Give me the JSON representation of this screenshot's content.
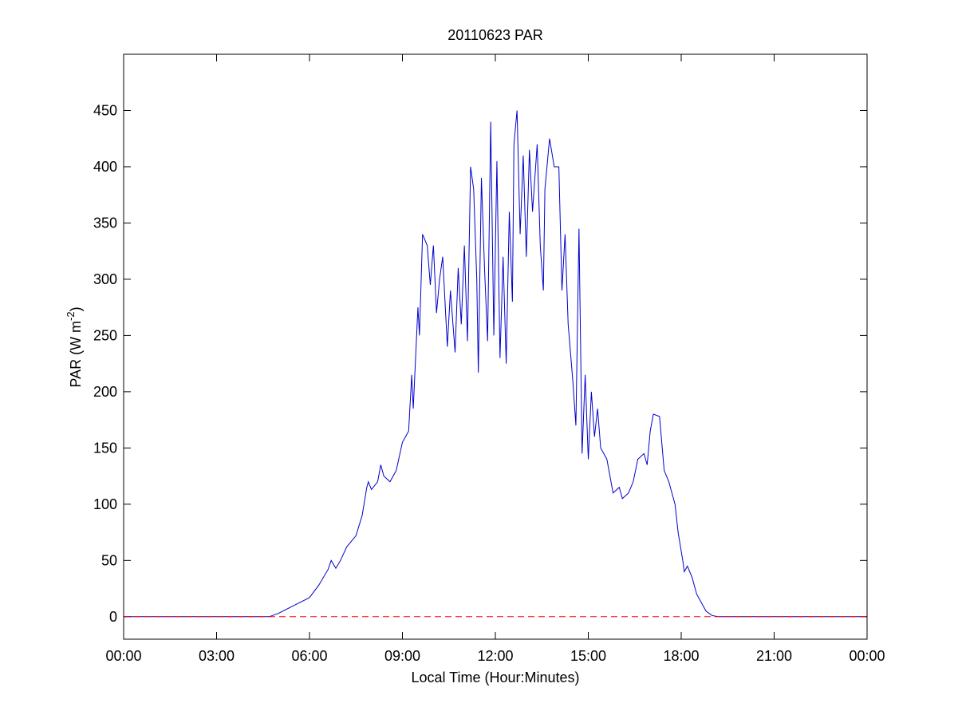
{
  "chart_data": {
    "type": "line",
    "title": "20110623 PAR",
    "x_label": "Local Time (Hour:Minutes)",
    "y_label": {
      "text": "PAR (W m",
      "superscript": "-2",
      "suffix": ")"
    },
    "xlim": [
      0,
      24
    ],
    "xticks": [
      {
        "value": 0,
        "label": "00:00"
      },
      {
        "value": 3,
        "label": "03:00"
      },
      {
        "value": 6,
        "label": "06:00"
      },
      {
        "value": 9,
        "label": "09:00"
      },
      {
        "value": 12,
        "label": "12:00"
      },
      {
        "value": 15,
        "label": "15:00"
      },
      {
        "value": 18,
        "label": "18:00"
      },
      {
        "value": 21,
        "label": "21:00"
      },
      {
        "value": 24,
        "label": "00:00"
      }
    ],
    "ylim": [
      -20,
      500
    ],
    "yticks": [
      0,
      50,
      100,
      150,
      200,
      250,
      300,
      350,
      400,
      450
    ],
    "grid": false,
    "reference_line": {
      "value": 0,
      "color": "#ff0000",
      "style": "dashed"
    },
    "series": [
      {
        "color": "#0000cc",
        "x": [
          0,
          4.7,
          5.0,
          5.5,
          6.0,
          6.3,
          6.6,
          6.7,
          6.85,
          7.0,
          7.2,
          7.5,
          7.7,
          7.85,
          7.9,
          8.0,
          8.2,
          8.3,
          8.4,
          8.6,
          8.8,
          9.0,
          9.2,
          9.3,
          9.35,
          9.5,
          9.55,
          9.65,
          9.8,
          9.9,
          10.0,
          10.1,
          10.2,
          10.3,
          10.45,
          10.55,
          10.7,
          10.8,
          10.9,
          11.0,
          11.1,
          11.2,
          11.3,
          11.4,
          11.45,
          11.55,
          11.65,
          11.75,
          11.85,
          11.95,
          12.05,
          12.15,
          12.25,
          12.35,
          12.45,
          12.55,
          12.6,
          12.7,
          12.8,
          12.9,
          13.0,
          13.1,
          13.2,
          13.35,
          13.45,
          13.55,
          13.6,
          13.75,
          13.9,
          14.05,
          14.15,
          14.25,
          14.35,
          14.5,
          14.6,
          14.7,
          14.8,
          14.9,
          15.0,
          15.1,
          15.2,
          15.3,
          15.4,
          15.6,
          15.8,
          16.0,
          16.1,
          16.3,
          16.45,
          16.6,
          16.8,
          16.9,
          17.0,
          17.1,
          17.3,
          17.45,
          17.6,
          17.8,
          17.9,
          18.05,
          18.1,
          18.2,
          18.35,
          18.5,
          18.8,
          19.0,
          19.2,
          24
        ],
        "values": [
          0,
          0,
          3,
          10,
          17,
          28,
          42,
          50,
          43,
          50,
          62,
          72,
          90,
          115,
          120,
          113,
          120,
          135,
          125,
          120,
          130,
          155,
          165,
          215,
          185,
          275,
          250,
          340,
          330,
          295,
          330,
          270,
          300,
          320,
          240,
          290,
          235,
          310,
          260,
          330,
          245,
          400,
          380,
          300,
          217,
          390,
          310,
          245,
          440,
          250,
          405,
          230,
          320,
          225,
          360,
          280,
          420,
          450,
          340,
          410,
          320,
          415,
          360,
          420,
          330,
          290,
          380,
          425,
          400,
          400,
          290,
          340,
          260,
          210,
          170,
          345,
          145,
          215,
          140,
          200,
          160,
          185,
          150,
          140,
          110,
          115,
          105,
          110,
          120,
          140,
          145,
          135,
          165,
          180,
          178,
          130,
          120,
          100,
          75,
          50,
          40,
          45,
          35,
          20,
          5,
          1,
          0,
          0
        ]
      }
    ]
  }
}
